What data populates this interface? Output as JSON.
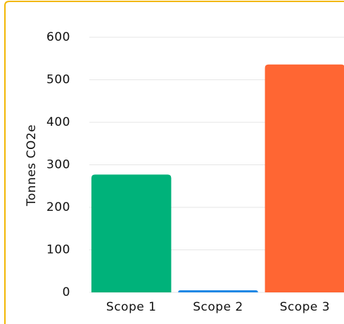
{
  "chart_data": {
    "type": "bar",
    "y_label": "Tonnes CO2e",
    "categories": [
      "Scope 1",
      "Scope 2",
      "Scope 3"
    ],
    "values": [
      277,
      5,
      536
    ],
    "colors": [
      "#00b27a",
      "#1e88e5",
      "#ff6633"
    ],
    "ylim": [
      0,
      600
    ],
    "yticks": [
      0,
      100,
      200,
      300,
      400,
      500,
      600
    ],
    "grid": true
  }
}
